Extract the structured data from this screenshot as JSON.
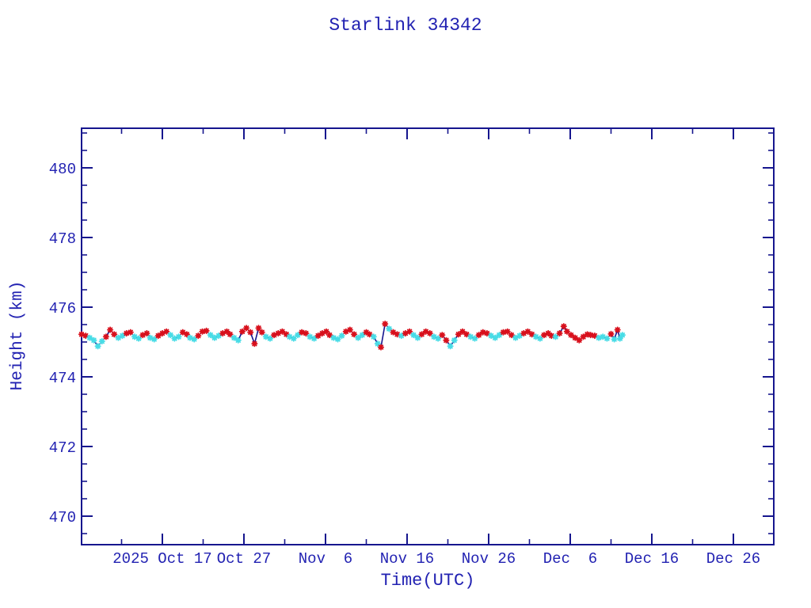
{
  "page": {
    "background": "#ffffff"
  },
  "colors": {
    "frame": "#16168e",
    "line": "#16168e",
    "text": "#2222b2",
    "marker_red": "#d8101c",
    "marker_cyan": "#48dce6"
  },
  "chart_data": {
    "type": "line",
    "title": "Starlink 34342",
    "xlabel": "Time(UTC)",
    "ylabel": "Height (km)",
    "x_unit": "days relative to 2025 Oct 17 (UTC)",
    "x_range": [
      -9.9,
      75.0
    ],
    "y_range": [
      469.2,
      481.1
    ],
    "grid": false,
    "legend_position": "none",
    "x_major_ticks": [
      {
        "day": 0,
        "label": "2025 Oct 17"
      },
      {
        "day": 10,
        "label": "Oct 27"
      },
      {
        "day": 20,
        "label": "Nov  6"
      },
      {
        "day": 30,
        "label": "Nov 16"
      },
      {
        "day": 40,
        "label": "Nov 26"
      },
      {
        "day": 50,
        "label": "Dec  6"
      },
      {
        "day": 60,
        "label": "Dec 16"
      },
      {
        "day": 70,
        "label": "Dec 26"
      }
    ],
    "x_minor_ticks": [
      -5,
      5,
      15,
      25,
      35,
      45,
      55,
      65
    ],
    "y_major_ticks": [
      470,
      472,
      474,
      476,
      478,
      480
    ],
    "y_minor_step": 0.5,
    "series": [
      {
        "name": "orbital-height",
        "line_color": "#16168e",
        "marker": "asterisk",
        "marker_colors": {
          "r": "#d8101c",
          "c": "#48dce6"
        },
        "points": [
          [
            -9.9,
            475.22,
            "r"
          ],
          [
            -9.4,
            475.18,
            "r"
          ],
          [
            -8.9,
            475.12,
            "c"
          ],
          [
            -8.4,
            475.05,
            "c"
          ],
          [
            -7.9,
            474.88,
            "c"
          ],
          [
            -7.4,
            475.02,
            "c"
          ],
          [
            -6.9,
            475.15,
            "r"
          ],
          [
            -6.4,
            475.35,
            "r"
          ],
          [
            -5.9,
            475.22,
            "r"
          ],
          [
            -5.4,
            475.12,
            "c"
          ],
          [
            -4.9,
            475.18,
            "c"
          ],
          [
            -4.4,
            475.25,
            "r"
          ],
          [
            -3.9,
            475.28,
            "r"
          ],
          [
            -3.4,
            475.15,
            "c"
          ],
          [
            -2.9,
            475.1,
            "c"
          ],
          [
            -2.4,
            475.2,
            "r"
          ],
          [
            -1.9,
            475.25,
            "r"
          ],
          [
            -1.5,
            475.12,
            "c"
          ],
          [
            -1.0,
            475.08,
            "c"
          ],
          [
            -0.5,
            475.18,
            "r"
          ],
          [
            0.0,
            475.25,
            "r"
          ],
          [
            0.5,
            475.3,
            "r"
          ],
          [
            1.0,
            475.2,
            "c"
          ],
          [
            1.5,
            475.1,
            "c"
          ],
          [
            2.0,
            475.15,
            "c"
          ],
          [
            2.5,
            475.28,
            "r"
          ],
          [
            3.0,
            475.22,
            "r"
          ],
          [
            3.4,
            475.12,
            "c"
          ],
          [
            3.9,
            475.08,
            "c"
          ],
          [
            4.4,
            475.18,
            "r"
          ],
          [
            4.9,
            475.3,
            "r"
          ],
          [
            5.4,
            475.32,
            "r"
          ],
          [
            5.9,
            475.2,
            "c"
          ],
          [
            6.4,
            475.12,
            "c"
          ],
          [
            6.9,
            475.18,
            "c"
          ],
          [
            7.4,
            475.25,
            "r"
          ],
          [
            7.9,
            475.3,
            "r"
          ],
          [
            8.3,
            475.22,
            "r"
          ],
          [
            8.8,
            475.12,
            "c"
          ],
          [
            9.3,
            475.05,
            "c"
          ],
          [
            9.8,
            475.3,
            "r"
          ],
          [
            10.3,
            475.4,
            "r"
          ],
          [
            10.8,
            475.28,
            "r"
          ],
          [
            11.3,
            474.95,
            "r"
          ],
          [
            11.8,
            475.4,
            "r"
          ],
          [
            12.2,
            475.28,
            "r"
          ],
          [
            12.7,
            475.15,
            "c"
          ],
          [
            13.2,
            475.1,
            "c"
          ],
          [
            13.7,
            475.2,
            "r"
          ],
          [
            14.2,
            475.25,
            "r"
          ],
          [
            14.7,
            475.3,
            "r"
          ],
          [
            15.2,
            475.22,
            "r"
          ],
          [
            15.6,
            475.15,
            "c"
          ],
          [
            16.1,
            475.1,
            "c"
          ],
          [
            16.6,
            475.2,
            "c"
          ],
          [
            17.1,
            475.28,
            "r"
          ],
          [
            17.6,
            475.25,
            "r"
          ],
          [
            18.1,
            475.15,
            "c"
          ],
          [
            18.6,
            475.1,
            "c"
          ],
          [
            19.1,
            475.18,
            "r"
          ],
          [
            19.6,
            475.25,
            "r"
          ],
          [
            20.1,
            475.3,
            "r"
          ],
          [
            20.5,
            475.2,
            "r"
          ],
          [
            21.0,
            475.12,
            "c"
          ],
          [
            21.5,
            475.08,
            "c"
          ],
          [
            22.0,
            475.18,
            "c"
          ],
          [
            22.5,
            475.3,
            "r"
          ],
          [
            23.0,
            475.35,
            "r"
          ],
          [
            23.5,
            475.22,
            "r"
          ],
          [
            24.0,
            475.12,
            "c"
          ],
          [
            24.5,
            475.2,
            "c"
          ],
          [
            25.0,
            475.28,
            "r"
          ],
          [
            25.4,
            475.22,
            "r"
          ],
          [
            25.9,
            475.15,
            "c"
          ],
          [
            26.4,
            474.95,
            "c"
          ],
          [
            26.8,
            474.85,
            "r"
          ],
          [
            27.3,
            475.52,
            "r"
          ],
          [
            27.8,
            475.38,
            "c"
          ],
          [
            28.3,
            475.28,
            "r"
          ],
          [
            28.8,
            475.22,
            "r"
          ],
          [
            29.3,
            475.18,
            "c"
          ],
          [
            29.8,
            475.25,
            "r"
          ],
          [
            30.3,
            475.3,
            "r"
          ],
          [
            30.8,
            475.2,
            "c"
          ],
          [
            31.3,
            475.12,
            "c"
          ],
          [
            31.8,
            475.22,
            "r"
          ],
          [
            32.3,
            475.3,
            "r"
          ],
          [
            32.8,
            475.25,
            "r"
          ],
          [
            33.3,
            475.15,
            "c"
          ],
          [
            33.8,
            475.1,
            "c"
          ],
          [
            34.3,
            475.2,
            "r"
          ],
          [
            34.8,
            475.05,
            "r"
          ],
          [
            35.3,
            474.88,
            "c"
          ],
          [
            35.8,
            475.05,
            "c"
          ],
          [
            36.3,
            475.22,
            "r"
          ],
          [
            36.8,
            475.3,
            "r"
          ],
          [
            37.3,
            475.22,
            "r"
          ],
          [
            37.8,
            475.15,
            "c"
          ],
          [
            38.3,
            475.1,
            "c"
          ],
          [
            38.8,
            475.2,
            "r"
          ],
          [
            39.3,
            475.28,
            "r"
          ],
          [
            39.8,
            475.25,
            "r"
          ],
          [
            40.3,
            475.18,
            "c"
          ],
          [
            40.8,
            475.12,
            "c"
          ],
          [
            41.3,
            475.2,
            "c"
          ],
          [
            41.8,
            475.28,
            "r"
          ],
          [
            42.3,
            475.3,
            "r"
          ],
          [
            42.8,
            475.2,
            "r"
          ],
          [
            43.3,
            475.12,
            "c"
          ],
          [
            43.8,
            475.18,
            "c"
          ],
          [
            44.3,
            475.25,
            "r"
          ],
          [
            44.8,
            475.3,
            "r"
          ],
          [
            45.3,
            475.22,
            "r"
          ],
          [
            45.8,
            475.15,
            "c"
          ],
          [
            46.3,
            475.1,
            "c"
          ],
          [
            46.8,
            475.2,
            "r"
          ],
          [
            47.3,
            475.25,
            "r"
          ],
          [
            47.7,
            475.18,
            "r"
          ],
          [
            48.2,
            475.15,
            "c"
          ],
          [
            48.7,
            475.25,
            "r"
          ],
          [
            49.2,
            475.45,
            "r"
          ],
          [
            49.6,
            475.3,
            "r"
          ],
          [
            50.1,
            475.2,
            "r"
          ],
          [
            50.6,
            475.12,
            "r"
          ],
          [
            51.1,
            475.05,
            "r"
          ],
          [
            51.6,
            475.15,
            "r"
          ],
          [
            52.1,
            475.22,
            "r"
          ],
          [
            52.5,
            475.2,
            "r"
          ],
          [
            53.0,
            475.18,
            "r"
          ],
          [
            53.5,
            475.12,
            "c"
          ],
          [
            54.0,
            475.15,
            "c"
          ],
          [
            54.5,
            475.1,
            "c"
          ],
          [
            55.0,
            475.23,
            "r"
          ],
          [
            55.4,
            475.08,
            "c"
          ],
          [
            55.8,
            475.35,
            "r"
          ],
          [
            56.1,
            475.1,
            "c"
          ],
          [
            56.4,
            475.2,
            "c"
          ]
        ]
      }
    ]
  }
}
